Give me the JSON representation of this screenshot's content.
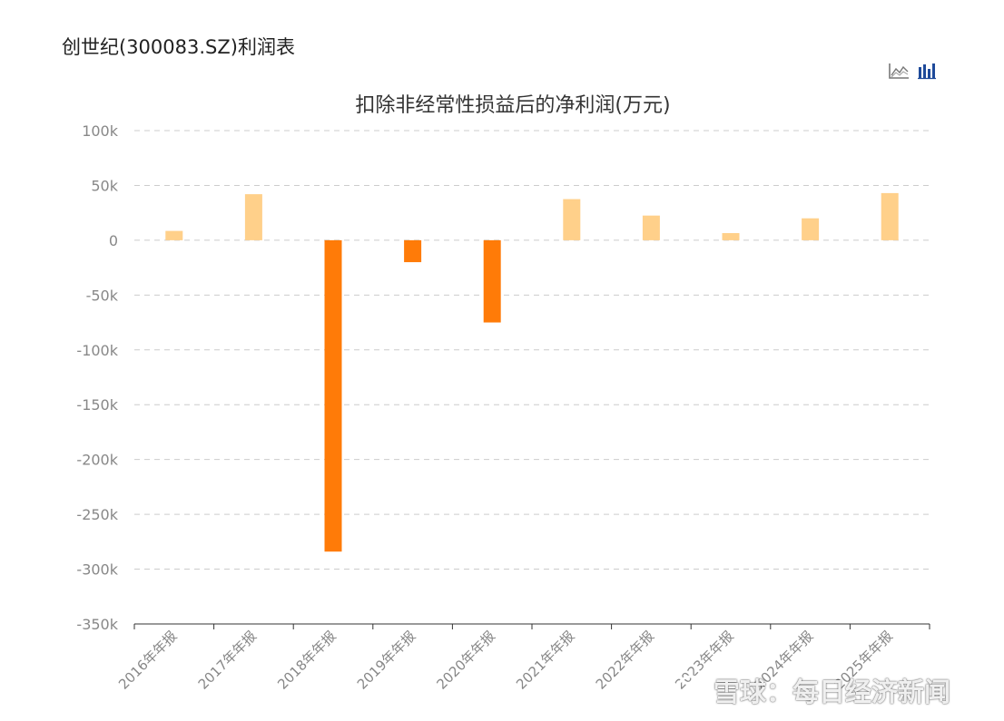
{
  "page_title": "创世纪(300083.SZ)利润表",
  "toolbar": {
    "line_icon": "line-chart-icon",
    "bar_icon": "bar-chart-icon"
  },
  "watermark": {
    "text": "雪球：每日经济新闻",
    "logo_icon": "snowball-logo-icon"
  },
  "chart_data": {
    "type": "bar",
    "title": "扣除非经常性损益后的净利润(万元)",
    "xlabel": "",
    "ylabel": "",
    "ylim": [
      -350000,
      100000
    ],
    "yticks": [
      100000,
      50000,
      0,
      -50000,
      -100000,
      -150000,
      -200000,
      -250000,
      -300000,
      -350000
    ],
    "ytick_labels": [
      "100k",
      "50k",
      "0",
      "-50k",
      "-100k",
      "-150k",
      "-200k",
      "-250k",
      "-300k",
      "-350k"
    ],
    "grid": true,
    "categories": [
      "2016年年报",
      "2017年年报",
      "2018年年报",
      "2019年年报",
      "2020年年报",
      "2021年年报",
      "2022年年报",
      "2023年年报",
      "2024年年报",
      "2025年年报"
    ],
    "values": [
      8500,
      42000,
      -284000,
      -20000,
      -75000,
      37500,
      22500,
      6500,
      20000,
      43000
    ],
    "colors": {
      "positive": "#FFD08A",
      "negative": "#FF7B08",
      "grid": "#cccccc",
      "axis": "#333333",
      "tick_label": "#888888"
    }
  }
}
